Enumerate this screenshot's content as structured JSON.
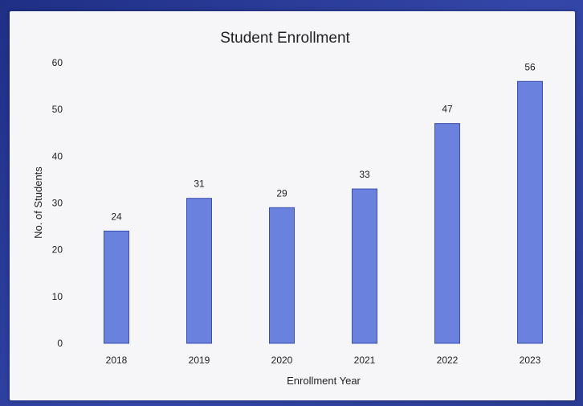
{
  "chart_data": {
    "type": "bar",
    "title": "Student Enrollment",
    "xlabel": "Enrollment Year",
    "ylabel": "No. of Students",
    "categories": [
      "2018",
      "2019",
      "2020",
      "2021",
      "2022",
      "2023"
    ],
    "values": [
      24,
      31,
      29,
      33,
      47,
      56
    ],
    "data_labels": [
      "24",
      "31",
      "29",
      "33",
      "47",
      "56"
    ],
    "yticks": [
      "0",
      "10",
      "20",
      "30",
      "40",
      "50",
      "60"
    ],
    "ylim": [
      0,
      60
    ],
    "grid": false,
    "legend": "none",
    "bar_color": "#6a82de",
    "bar_edge_color": "#3a4fb0"
  }
}
